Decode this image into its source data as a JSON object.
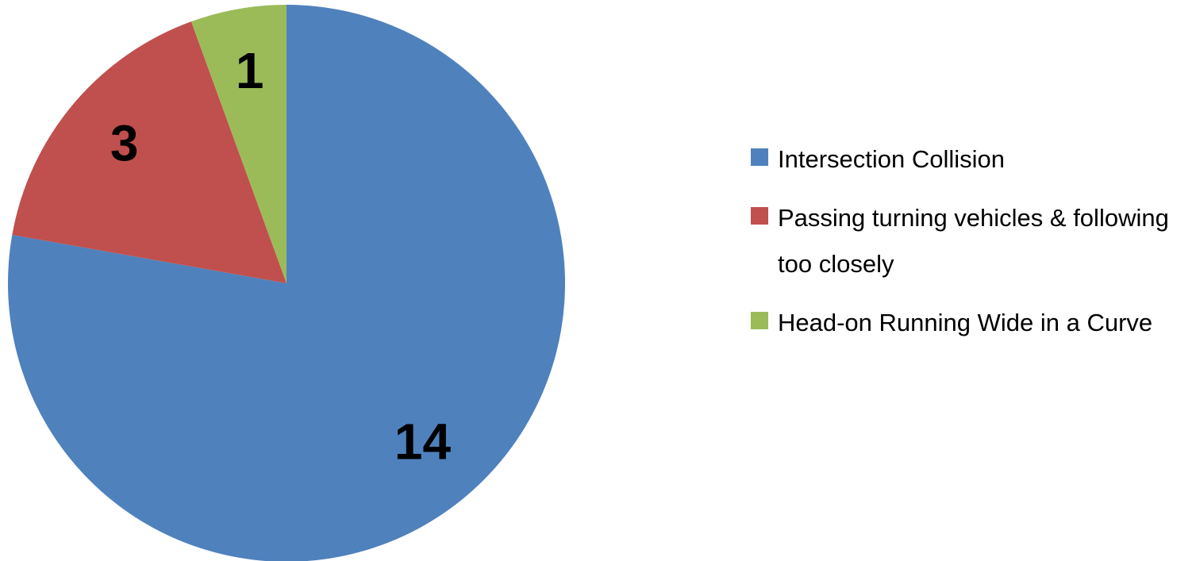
{
  "chart_data": {
    "type": "pie",
    "categories": [
      "Intersection Collision",
      "Passing turning vehicles & following too closely",
      "Head-on Running Wide in a Curve"
    ],
    "values": [
      14,
      3,
      1
    ],
    "colors": [
      "#4f81bd",
      "#c0504d",
      "#9bbb59"
    ],
    "legend": "right"
  }
}
